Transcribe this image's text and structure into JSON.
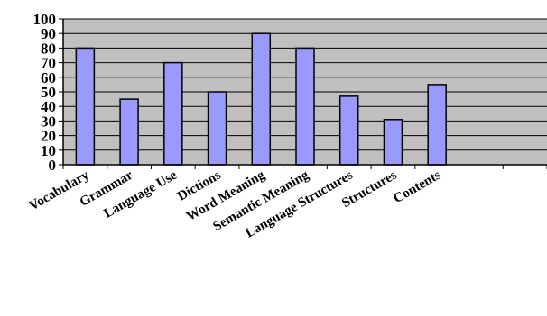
{
  "chart_data": {
    "type": "bar",
    "categories": [
      "Vocabulary",
      "Grammar",
      "Language Use",
      "Dictions",
      "Word Meaning",
      "Semantic Meaning",
      "Language Structures",
      "Structures",
      "Contents",
      "",
      ""
    ],
    "values": [
      80,
      45,
      70,
      50,
      90,
      80,
      47,
      31,
      55,
      null,
      null
    ],
    "title": "",
    "xlabel": "",
    "ylabel": "",
    "ylim": [
      0,
      100
    ],
    "yticks": [
      0,
      10,
      20,
      30,
      40,
      50,
      60,
      70,
      80,
      90,
      100
    ],
    "grid": true,
    "legend": "none",
    "colors": {
      "bar_fill": "#9999ff",
      "bar_stroke": "#000000",
      "plot_background": "#c0c0c0",
      "gridline": "#000000"
    }
  }
}
